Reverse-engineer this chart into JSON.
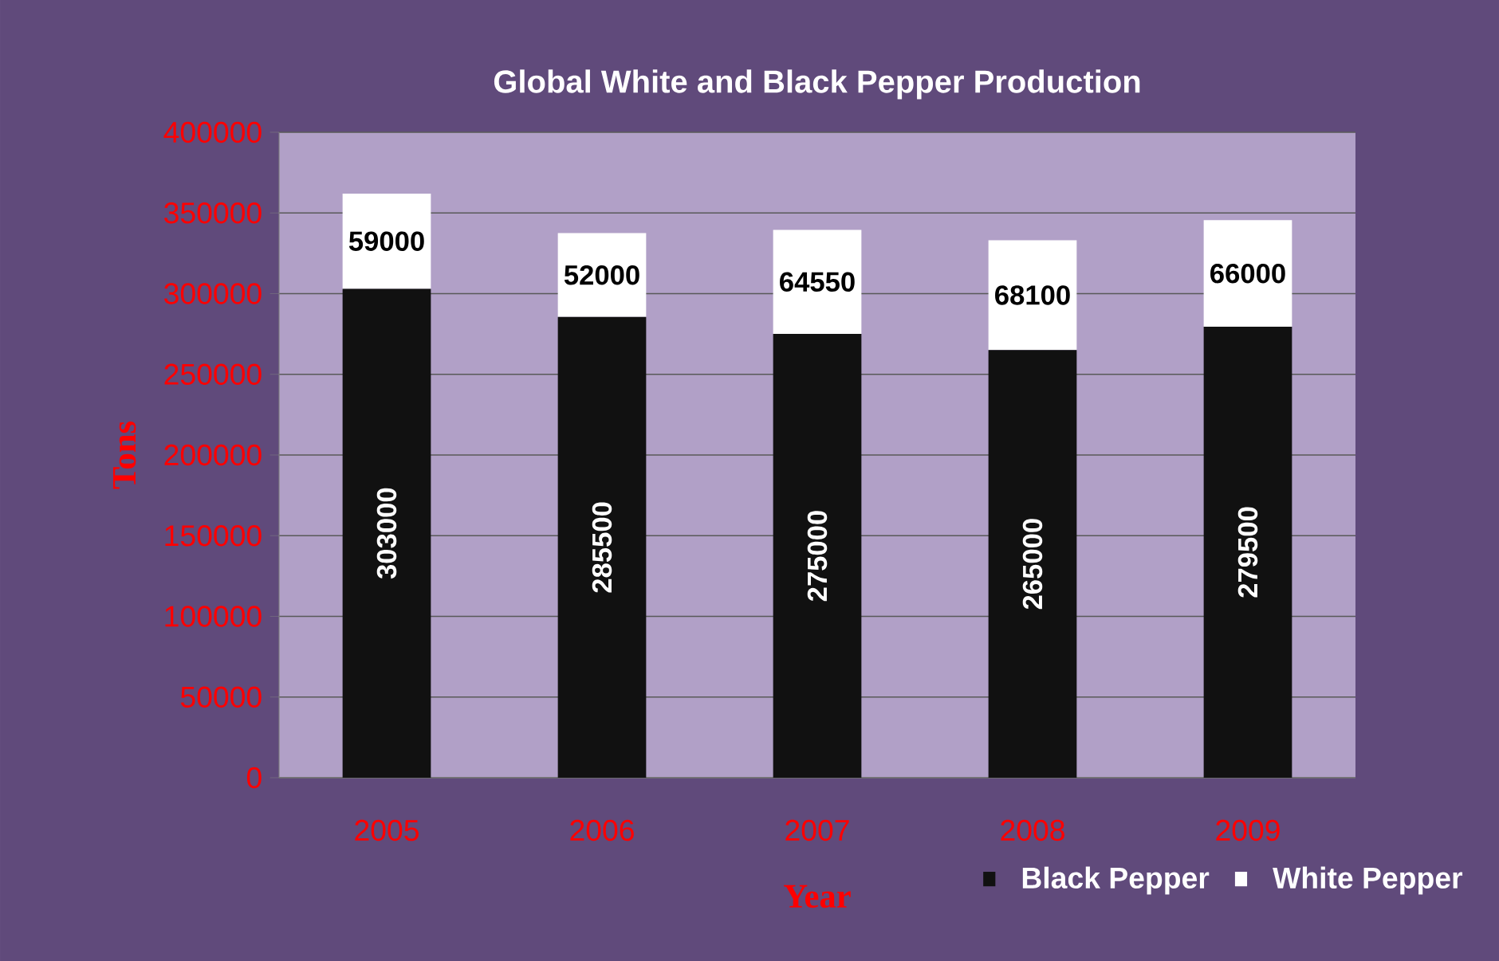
{
  "chart_data": {
    "type": "bar",
    "stacked": true,
    "title": "Global White and Black Pepper Production",
    "xlabel": "Year",
    "ylabel": "Tons",
    "categories": [
      "2005",
      "2006",
      "2007",
      "2008",
      "2009"
    ],
    "series": [
      {
        "name": "Black Pepper",
        "color": "#111111",
        "values": [
          303000,
          285500,
          275000,
          265000,
          279500
        ]
      },
      {
        "name": "White Pepper",
        "color": "#ffffff",
        "values": [
          59000,
          52000,
          64550,
          68100,
          66000
        ]
      }
    ],
    "ylim": [
      0,
      400000
    ],
    "yticks": [
      0,
      50000,
      100000,
      150000,
      200000,
      250000,
      300000,
      350000,
      400000
    ],
    "grid": "y",
    "legend": "bottom right",
    "data_labels": true
  }
}
